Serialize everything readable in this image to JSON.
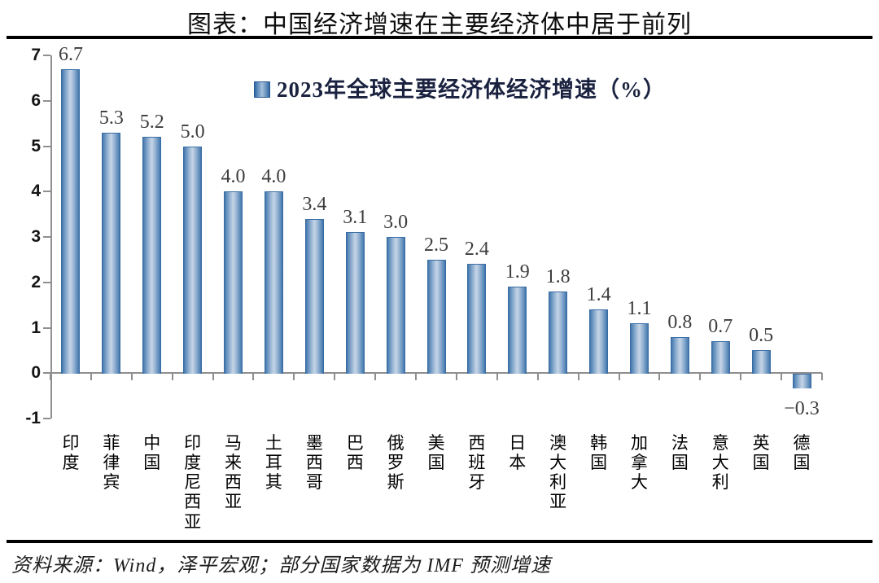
{
  "header": {
    "title": "图表：中国经济增速在主要经济体中居于前列"
  },
  "legend": {
    "label": "2023年全球主要经济体经济增速（%）"
  },
  "footer": {
    "source": "资料来源：Wind，泽平宏观；部分国家数据为 IMF 预测增速"
  },
  "colors": {
    "bar_edge": "#2f659e",
    "bar_mid": "#c6d5e6",
    "axis": "#8f8f8f",
    "value_label": "#3d3d3d",
    "legend_text": "#1a2240",
    "rule": "#000000"
  },
  "chart_data": {
    "type": "bar",
    "title": "2023年全球主要经济体经济增速（%）",
    "categories": [
      "印度",
      "菲律宾",
      "中国",
      "印度尼西亚",
      "马来西亚",
      "土耳其",
      "墨西哥",
      "巴西",
      "俄罗斯",
      "美国",
      "西班牙",
      "日本",
      "澳大利亚",
      "韩国",
      "加拿大",
      "法国",
      "意大利",
      "英国",
      "德国"
    ],
    "values": [
      6.7,
      5.3,
      5.2,
      5.0,
      4.0,
      4.0,
      3.4,
      3.1,
      3.0,
      2.5,
      2.4,
      1.9,
      1.8,
      1.4,
      1.1,
      0.8,
      0.7,
      0.5,
      -0.3
    ],
    "value_labels": [
      "6.7",
      "5.3",
      "5.2",
      "5.0",
      "4.0",
      "4.0",
      "3.4",
      "3.1",
      "3.0",
      "2.5",
      "2.4",
      "1.9",
      "1.8",
      "1.4",
      "1.1",
      "0.8",
      "0.7",
      "0.5",
      "−0.3"
    ],
    "xlabel": "",
    "ylabel": "",
    "ylim": [
      -1,
      7
    ],
    "yticks": [
      7,
      6,
      5,
      4,
      3,
      2,
      1,
      0,
      -1
    ],
    "ytick_labels": [
      "7",
      "6",
      "5",
      "4",
      "3",
      "2",
      "1",
      "0",
      "-1"
    ],
    "grid": false,
    "legend_position": "top-center"
  }
}
